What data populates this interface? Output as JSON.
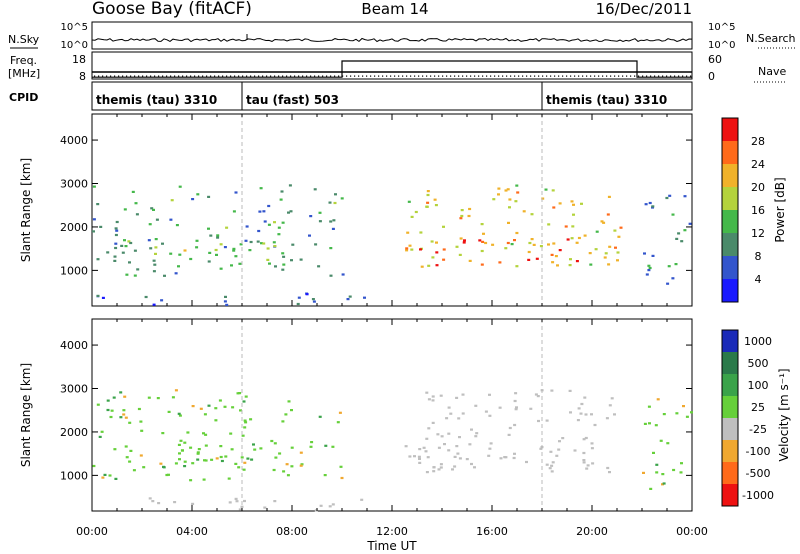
{
  "header": {
    "station": "Goose Bay (fitACF)",
    "beam": "Beam 14",
    "date": "16/Dec/2011"
  },
  "noise_panel": {
    "left_label": "N.Sky",
    "right_label": "N.Search",
    "left_ticks": [
      "10^5",
      "10^0"
    ],
    "right_ticks": [
      "10^5",
      "10^0"
    ]
  },
  "freq_panel": {
    "left_label_1": "Freq.",
    "left_label_2": "[MHz]",
    "right_label": "Nave",
    "left_ticks": [
      "18",
      "8"
    ],
    "right_ticks": [
      "60",
      "0"
    ]
  },
  "cpid_panel": {
    "label": "CPID",
    "segments": [
      {
        "start_hour": 0.0,
        "end_hour": 6.0,
        "label": "themis (tau) 3310"
      },
      {
        "start_hour": 6.0,
        "end_hour": 18.0,
        "label": "tau (fast) 503"
      },
      {
        "start_hour": 18.0,
        "end_hour": 24.0,
        "label": "themis (tau) 3310"
      }
    ]
  },
  "time_axis": {
    "label": "Time UT",
    "ticks": [
      "00:00",
      "04:00",
      "08:00",
      "12:00",
      "16:00",
      "20:00",
      "00:00"
    ]
  },
  "power_panel": {
    "ylabel": "Slant Range [km]",
    "yticks": [
      "1000",
      "2000",
      "3000",
      "4000"
    ],
    "colorbar_label": "Power [dB]",
    "colorbar_ticks": [
      "4",
      "8",
      "12",
      "16",
      "20",
      "24",
      "28"
    ],
    "colors": [
      "#1a1aff",
      "#3355cc",
      "#4a8a6a",
      "#44b84a",
      "#b4d33c",
      "#f0b22a",
      "#ff6a1a",
      "#ee1111"
    ]
  },
  "velocity_panel": {
    "ylabel": "Slant Range [km]",
    "yticks": [
      "1000",
      "2000",
      "3000",
      "4000"
    ],
    "colorbar_label": "Velocity [m s⁻¹]",
    "colorbar_ticks": [
      "1000",
      "500",
      "100",
      "25",
      "-25",
      "-100",
      "-500",
      "-1000"
    ],
    "colors": [
      "#1a2ab8",
      "#2a7a4a",
      "#3aa34a",
      "#66d03a",
      "#bfbfbf",
      "#f0a830",
      "#ff6a1a",
      "#ee1111"
    ]
  },
  "chart_data": {
    "type": "heatmap",
    "x_range_hours": [
      0,
      24
    ],
    "y_range_km": [
      180,
      4600
    ],
    "cpid_changes_hours": [
      6.0,
      18.0
    ],
    "data_gap_hours": [
      21.8,
      22.0
    ],
    "nave_step": {
      "low": 0,
      "high": 40,
      "step_up_hour": 10.0,
      "step_down_hour": 21.8
    },
    "scatter_regions": [
      {
        "t0": 0.0,
        "t1": 10.0,
        "r0": 900,
        "r1": 3000,
        "power_db": 12,
        "velocity": "100"
      },
      {
        "t0": 3.2,
        "t1": 8.0,
        "r0": 1100,
        "r1": 1700,
        "power_db": 16,
        "velocity": "100"
      },
      {
        "t0": 12.5,
        "t1": 21.2,
        "r0": 1100,
        "r1": 3000,
        "power_db": 20,
        "velocity": "0"
      },
      {
        "t0": 13.0,
        "t1": 20.0,
        "r0": 1100,
        "r1": 1800,
        "power_db": 26,
        "velocity": "0"
      },
      {
        "t0": 22.0,
        "t1": 24.0,
        "r0": 700,
        "r1": 2800,
        "power_db": 10,
        "velocity": "100"
      },
      {
        "t0": 0.0,
        "t1": 11.0,
        "r0": 200,
        "r1": 500,
        "power_db": 6,
        "velocity": "0"
      }
    ]
  }
}
